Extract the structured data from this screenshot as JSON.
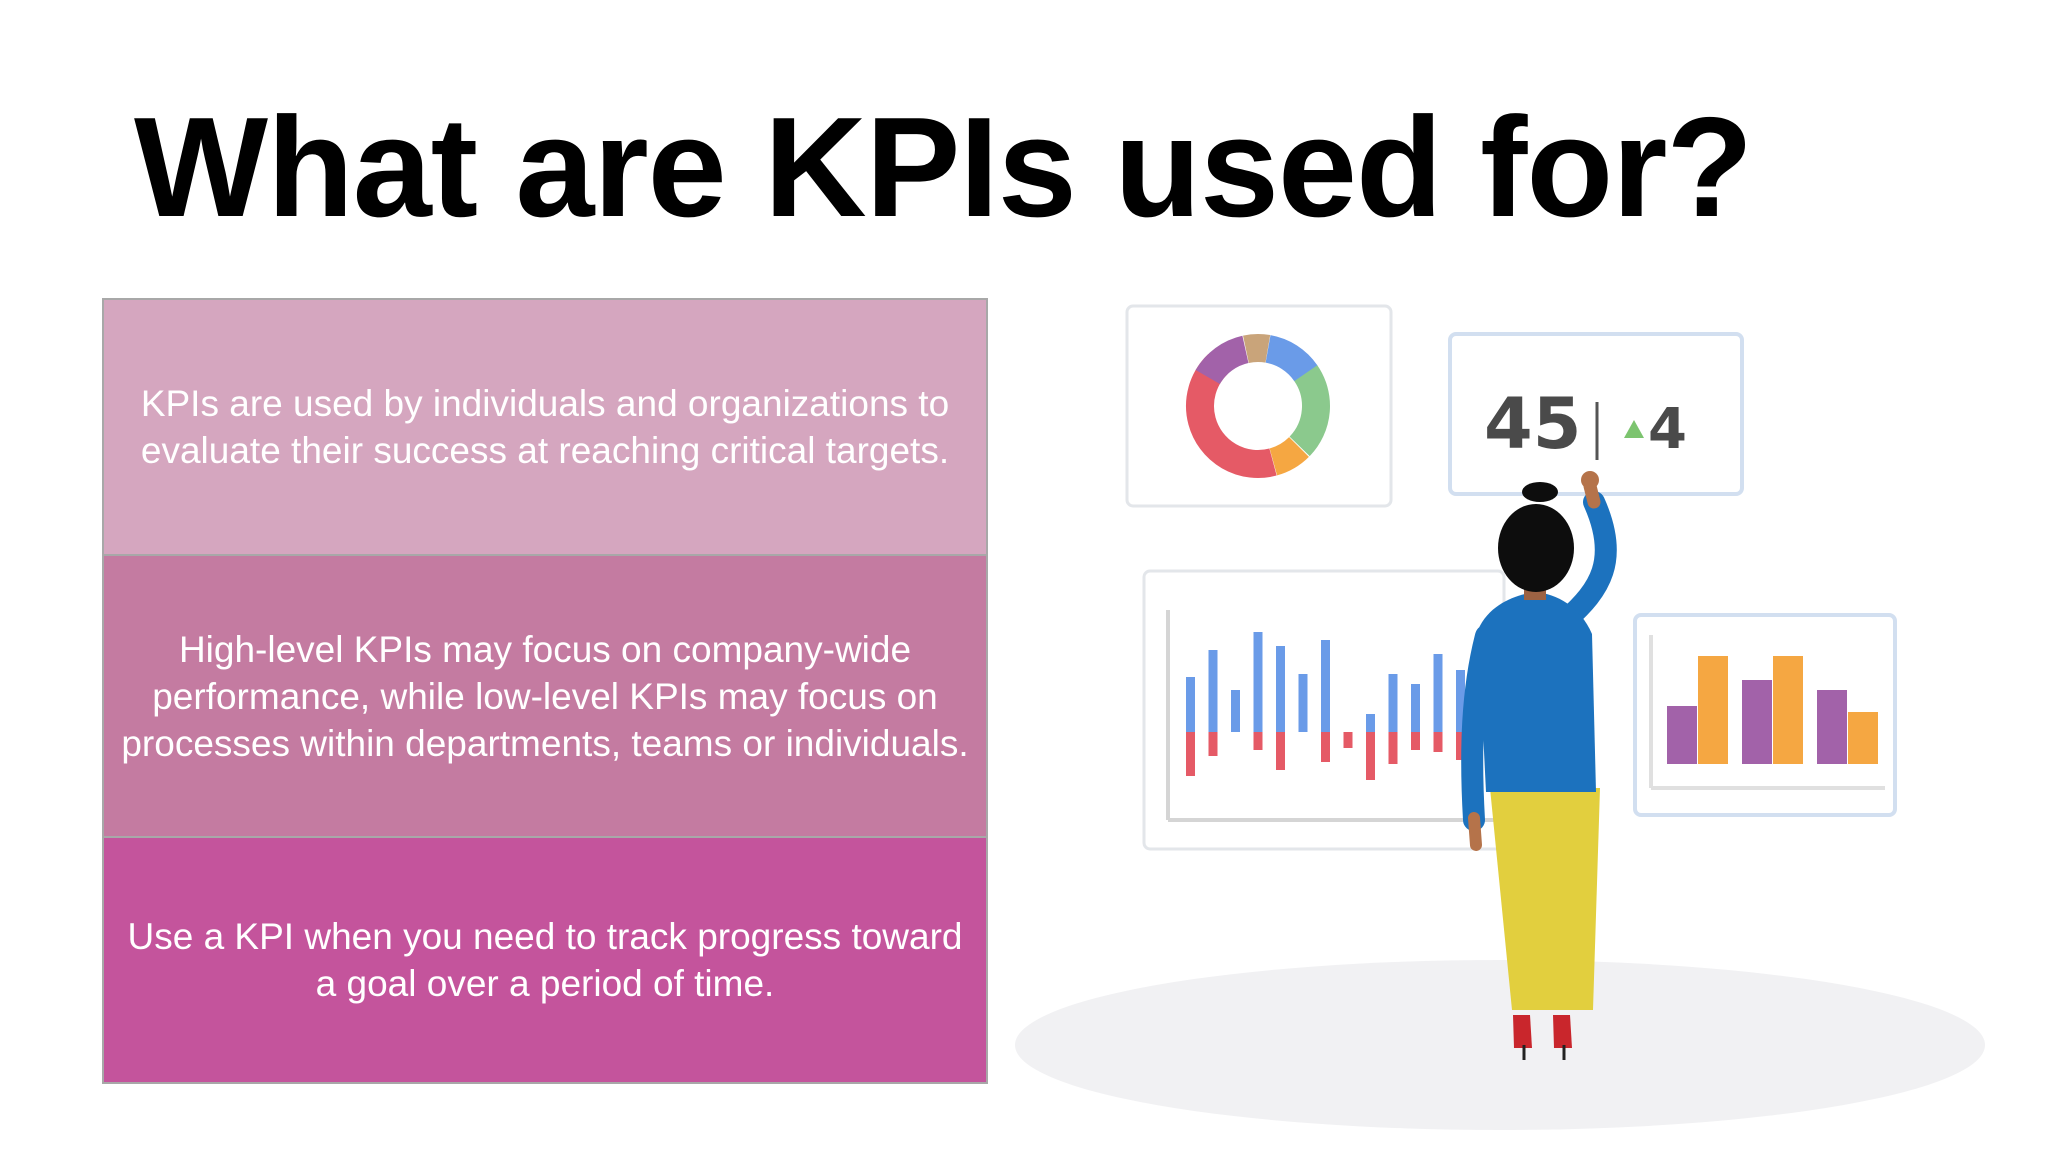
{
  "slide": {
    "title": "What are KPIs used for?",
    "panels": [
      {
        "text": "KPIs are used by individuals and organizations to evaluate their success at reaching critical targets.",
        "color": "#d5a6bf"
      },
      {
        "text": "High-level KPIs may focus on company-wide performance, while low-level KPIs may focus on processes within departments, teams or individuals.",
        "color": "#c47ba1"
      },
      {
        "text": "Use a KPI when you need to track progress toward a goal over a period of time.",
        "color": "#c4549c"
      }
    ]
  },
  "illustration": {
    "kpi_value": "45",
    "kpi_delta": "4",
    "colors": {
      "blue": "#6a9be8",
      "red": "#e55a66",
      "green": "#8bc98d",
      "orange": "#f5a742",
      "purple": "#a262a9",
      "tan": "#c9a47a",
      "figure_top": "#1c72be",
      "figure_skirt": "#e2cf3e",
      "floor": "#f1f1f3"
    }
  }
}
